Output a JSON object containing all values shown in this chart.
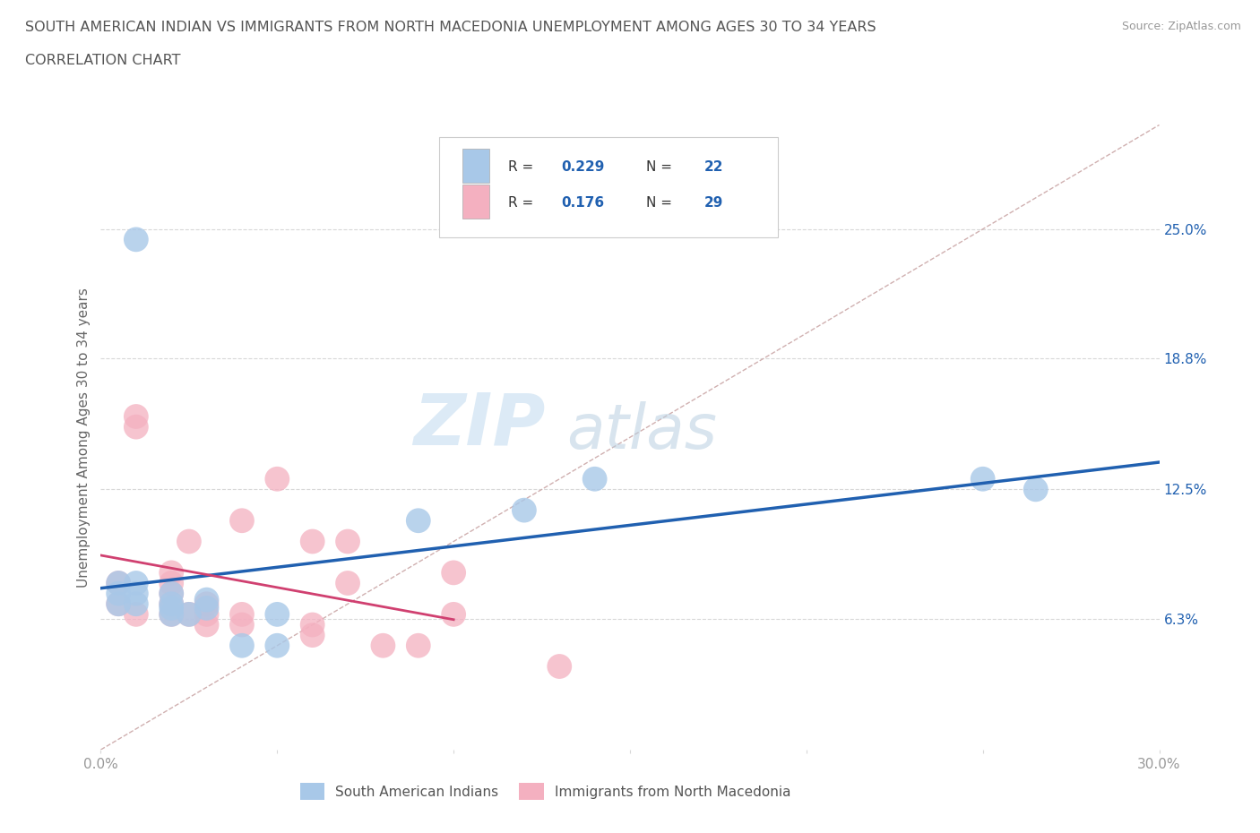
{
  "title_line1": "SOUTH AMERICAN INDIAN VS IMMIGRANTS FROM NORTH MACEDONIA UNEMPLOYMENT AMONG AGES 30 TO 34 YEARS",
  "title_line2": "CORRELATION CHART",
  "source": "Source: ZipAtlas.com",
  "ylabel": "Unemployment Among Ages 30 to 34 years",
  "xlim": [
    0.0,
    0.3
  ],
  "ylim": [
    0.0,
    0.3
  ],
  "ytick_vals": [
    0.0,
    0.063,
    0.125,
    0.188,
    0.25
  ],
  "ytick_labels": [
    "",
    "6.3%",
    "12.5%",
    "18.8%",
    "25.0%"
  ],
  "blue_R": 0.229,
  "blue_N": 22,
  "pink_R": 0.176,
  "pink_N": 29,
  "blue_color": "#a8c8e8",
  "pink_color": "#f4b0c0",
  "blue_line_color": "#2060b0",
  "pink_line_color": "#d04070",
  "diagonal_color": "#d0b0b0",
  "watermark_zip": "ZIP",
  "watermark_atlas": "atlas",
  "blue_scatter_x": [
    0.01,
    0.005,
    0.005,
    0.005,
    0.01,
    0.01,
    0.01,
    0.02,
    0.02,
    0.02,
    0.02,
    0.025,
    0.03,
    0.03,
    0.04,
    0.05,
    0.05,
    0.09,
    0.12,
    0.14,
    0.25,
    0.265
  ],
  "blue_scatter_y": [
    0.245,
    0.07,
    0.075,
    0.08,
    0.07,
    0.075,
    0.08,
    0.065,
    0.068,
    0.07,
    0.075,
    0.065,
    0.068,
    0.072,
    0.05,
    0.065,
    0.05,
    0.11,
    0.115,
    0.13,
    0.13,
    0.125
  ],
  "pink_scatter_x": [
    0.005,
    0.005,
    0.01,
    0.01,
    0.01,
    0.02,
    0.02,
    0.02,
    0.02,
    0.02,
    0.025,
    0.025,
    0.03,
    0.03,
    0.03,
    0.04,
    0.04,
    0.04,
    0.05,
    0.06,
    0.06,
    0.06,
    0.07,
    0.07,
    0.08,
    0.09,
    0.1,
    0.1,
    0.13
  ],
  "pink_scatter_y": [
    0.07,
    0.08,
    0.065,
    0.155,
    0.16,
    0.065,
    0.07,
    0.075,
    0.08,
    0.085,
    0.065,
    0.1,
    0.06,
    0.065,
    0.07,
    0.06,
    0.065,
    0.11,
    0.13,
    0.055,
    0.06,
    0.1,
    0.08,
    0.1,
    0.05,
    0.05,
    0.065,
    0.085,
    0.04
  ],
  "legend_label_blue": "South American Indians",
  "legend_label_pink": "Immigrants from North Macedonia",
  "grid_color": "#d8d8d8",
  "background_color": "#ffffff",
  "title_color": "#555555",
  "source_color": "#999999",
  "tick_color": "#999999"
}
